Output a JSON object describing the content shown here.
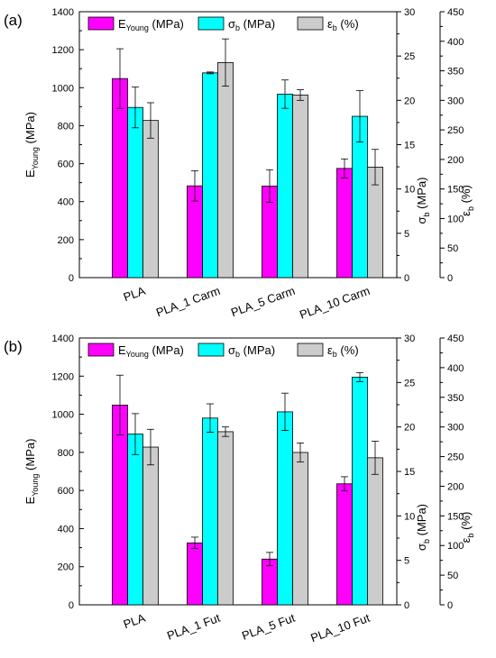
{
  "chart_data": [
    {
      "type": "bar",
      "panel_label": "(a)",
      "categories": [
        "PLA",
        "PLA_1 Carm",
        "PLA_5 Carm",
        "PLA_10 Carm"
      ],
      "series": [
        {
          "name": "E",
          "name_sub": "Young",
          "name_unit": " (MPa)",
          "axis": "left",
          "color": "#ff00ff",
          "values": [
            1048,
            483,
            482,
            575
          ],
          "errors": [
            157,
            80,
            86,
            50
          ]
        },
        {
          "name": "σ",
          "name_sub": "b",
          "name_unit": " (MPa)",
          "axis": "right1",
          "color": "#00ffff",
          "values": [
            19.2,
            23.1,
            20.7,
            18.2
          ],
          "errors": [
            2.3,
            0.1,
            1.6,
            2.9
          ]
        },
        {
          "name": "ε",
          "name_sub": "b",
          "name_unit": " (%)",
          "axis": "right2",
          "color": "#cccccc",
          "values": [
            266,
            364,
            309,
            187
          ],
          "errors": [
            30,
            40,
            9,
            30
          ]
        }
      ],
      "y_left": {
        "label": "E",
        "label_sub": "Young",
        "label_unit": " (MPa)",
        "lim": [
          0,
          1400
        ],
        "ticks": [
          "0",
          "200",
          "400",
          "600",
          "800",
          "1000",
          "1200",
          "1400"
        ]
      },
      "y_right1": {
        "label": "σ",
        "label_sub": "b",
        "label_unit": " (MPa)",
        "lim": [
          0,
          30
        ],
        "ticks": [
          "0",
          "5",
          "10",
          "15",
          "20",
          "25",
          "30"
        ]
      },
      "y_right2": {
        "label": "ε",
        "label_sub": "b",
        "label_unit": " (%)",
        "lim": [
          0,
          450
        ],
        "ticks": [
          "0",
          "50",
          "100",
          "150",
          "200",
          "250",
          "300",
          "350",
          "400",
          "450"
        ]
      },
      "legend": "top",
      "grid": false
    },
    {
      "type": "bar",
      "panel_label": "(b)",
      "categories": [
        "PLA",
        "PLA_1 Fut",
        "PLA_5 Fut",
        "PLA_10 Fut"
      ],
      "series": [
        {
          "name": "E",
          "name_sub": "Young",
          "name_unit": " (MPa)",
          "axis": "left",
          "color": "#ff00ff",
          "values": [
            1048,
            325,
            240,
            635
          ],
          "errors": [
            157,
            30,
            35,
            37
          ]
        },
        {
          "name": "σ",
          "name_sub": "b",
          "name_unit": " (MPa)",
          "axis": "right1",
          "color": "#00ffff",
          "values": [
            19.2,
            21.0,
            21.7,
            25.6
          ],
          "errors": [
            2.3,
            1.6,
            2.1,
            0.5
          ]
        },
        {
          "name": "ε",
          "name_sub": "b",
          "name_unit": " (%)",
          "axis": "right2",
          "color": "#cccccc",
          "values": [
            266,
            292,
            257,
            248
          ],
          "errors": [
            30,
            8,
            16,
            28
          ]
        }
      ],
      "y_left": {
        "label": "E",
        "label_sub": "Young",
        "label_unit": " (MPa)",
        "lim": [
          0,
          1400
        ],
        "ticks": [
          "0",
          "200",
          "400",
          "600",
          "800",
          "1000",
          "1200",
          "1400"
        ]
      },
      "y_right1": {
        "label": "σ",
        "label_sub": "b",
        "label_unit": " (MPa)",
        "lim": [
          0,
          30
        ],
        "ticks": [
          "0",
          "5",
          "10",
          "15",
          "20",
          "25",
          "30"
        ]
      },
      "y_right2": {
        "label": "ε",
        "label_sub": "b",
        "label_unit": " (%)",
        "lim": [
          0,
          450
        ],
        "ticks": [
          "0",
          "50",
          "100",
          "150",
          "200",
          "250",
          "300",
          "350",
          "400",
          "450"
        ]
      },
      "legend": "top",
      "grid": false
    }
  ]
}
